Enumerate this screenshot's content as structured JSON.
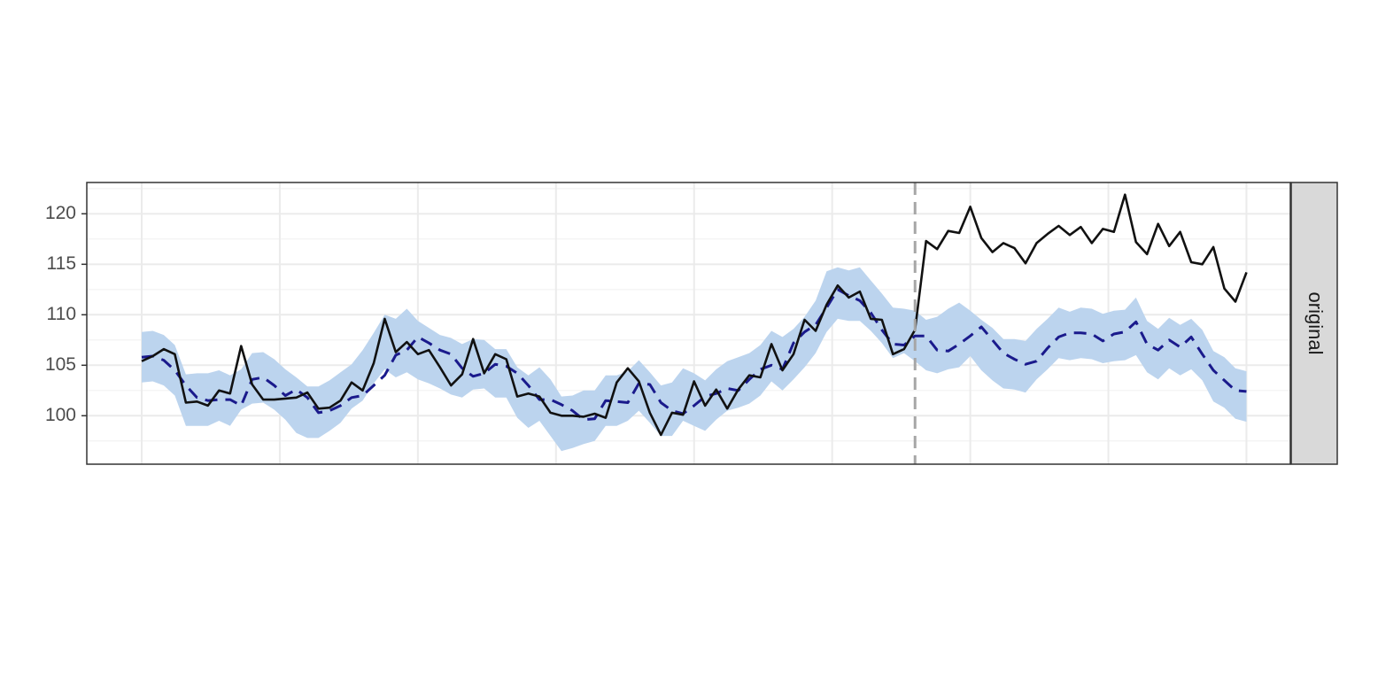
{
  "chart_data": {
    "type": "line",
    "title": "",
    "xlabel": "",
    "ylabel": "",
    "facet_label": "original",
    "x_index_range": [
      1,
      100
    ],
    "ylim": [
      95.2,
      123.1
    ],
    "y_ticks": [
      100,
      105,
      110,
      115,
      120
    ],
    "intervention_x": 71,
    "grid": true,
    "series": [
      {
        "role": "observed",
        "style": "solid",
        "color": "#111111",
        "values": [
          105.4,
          105.9,
          106.6,
          106.1,
          101.3,
          101.4,
          101.0,
          102.5,
          102.2,
          106.9,
          103.1,
          101.6,
          101.6,
          101.7,
          101.8,
          102.3,
          100.7,
          100.8,
          101.5,
          103.3,
          102.5,
          105.2,
          109.6,
          106.3,
          107.3,
          106.1,
          106.5,
          104.8,
          103.0,
          104.1,
          107.6,
          104.2,
          106.1,
          105.6,
          101.9,
          102.2,
          101.9,
          100.3,
          100.0,
          100.0,
          99.9,
          100.2,
          99.8,
          103.3,
          104.7,
          103.4,
          100.3,
          98.1,
          100.3,
          100.1,
          103.4,
          101.0,
          102.6,
          100.7,
          102.6,
          104.0,
          103.8,
          107.1,
          104.5,
          106.1,
          109.5,
          108.4,
          111.0,
          112.9,
          111.7,
          112.3,
          109.6,
          109.5,
          106.1,
          106.6,
          108.5,
          117.3,
          116.5,
          118.3,
          118.1,
          120.7,
          117.6,
          116.2,
          117.1,
          116.6,
          115.1,
          117.1,
          118.0,
          118.8,
          117.9,
          118.7,
          117.1,
          118.5,
          118.2,
          121.9,
          117.2,
          116.0,
          119.0,
          116.8,
          118.2,
          115.2,
          115.0,
          116.7,
          112.6,
          111.3,
          114.2
        ]
      },
      {
        "role": "predicted",
        "style": "dashed",
        "color": "#1a1a8c",
        "values": [
          105.8,
          105.9,
          105.5,
          104.5,
          103.0,
          101.8,
          101.5,
          101.6,
          101.6,
          101.0,
          103.6,
          103.8,
          103.0,
          102.0,
          102.6,
          101.8,
          100.3,
          100.5,
          101.0,
          101.8,
          102.0,
          103.0,
          104.0,
          106.0,
          106.5,
          107.8,
          107.2,
          106.5,
          106.1,
          104.7,
          103.9,
          104.2,
          105.1,
          104.9,
          104.2,
          103.0,
          101.6,
          101.6,
          101.1,
          100.5,
          99.6,
          99.7,
          101.5,
          101.4,
          101.3,
          103.2,
          103.1,
          101.3,
          100.5,
          100.2,
          101.0,
          101.9,
          102.2,
          102.7,
          102.5,
          103.6,
          104.6,
          105.0,
          104.6,
          107.2,
          108.3,
          109.0,
          110.7,
          112.5,
          111.9,
          111.4,
          110.2,
          108.5,
          107.1,
          107.0,
          107.9,
          107.9,
          106.5,
          106.4,
          107.1,
          107.9,
          108.8,
          107.5,
          106.2,
          105.6,
          105.1,
          105.4,
          106.7,
          107.8,
          108.2,
          108.2,
          108.1,
          107.4,
          108.1,
          108.3,
          109.3,
          107.1,
          106.5,
          107.5,
          106.8,
          107.8,
          106.1,
          104.5,
          103.5,
          102.5,
          102.4
        ]
      },
      {
        "role": "interval_lower",
        "color": "#bcd4ee",
        "values": [
          103.3,
          103.4,
          103.0,
          102.0,
          99.0,
          99.0,
          99.0,
          99.5,
          99.0,
          100.6,
          101.2,
          101.3,
          100.6,
          99.6,
          98.3,
          97.8,
          97.8,
          98.5,
          99.3,
          100.7,
          101.5,
          103.2,
          104.6,
          103.8,
          104.3,
          103.6,
          103.2,
          102.7,
          102.1,
          101.8,
          102.6,
          102.7,
          101.8,
          101.8,
          99.8,
          98.8,
          99.5,
          98.0,
          96.5,
          96.8,
          97.2,
          97.5,
          99.0,
          99.0,
          99.5,
          100.5,
          99.3,
          98.0,
          98.0,
          99.5,
          99.0,
          98.5,
          99.6,
          100.5,
          100.8,
          101.2,
          102.0,
          103.4,
          102.5,
          103.6,
          104.8,
          106.2,
          108.3,
          109.6,
          109.4,
          109.4,
          108.4,
          107.2,
          105.7,
          106.2,
          105.4,
          104.5,
          104.2,
          104.6,
          104.8,
          105.9,
          104.5,
          103.5,
          102.7,
          102.6,
          102.3,
          103.6,
          104.6,
          105.7,
          105.5,
          105.7,
          105.6,
          105.2,
          105.4,
          105.5,
          106.0,
          104.3,
          103.6,
          104.7,
          104.0,
          104.6,
          103.5,
          101.4,
          100.8,
          99.7,
          99.4
        ]
      },
      {
        "role": "interval_upper",
        "color": "#bcd4ee",
        "values": [
          108.3,
          108.4,
          108.0,
          107.0,
          104.1,
          104.2,
          104.2,
          104.5,
          104.0,
          104.6,
          106.2,
          106.3,
          105.6,
          104.6,
          103.8,
          102.9,
          102.9,
          103.5,
          104.3,
          105.1,
          106.5,
          108.2,
          110.0,
          109.6,
          110.6,
          109.4,
          108.7,
          108.0,
          107.7,
          107.1,
          107.6,
          107.5,
          106.6,
          106.6,
          104.8,
          104.0,
          104.8,
          103.6,
          101.9,
          102.0,
          102.5,
          102.5,
          104.0,
          104.0,
          104.4,
          105.5,
          104.3,
          103.0,
          103.3,
          104.7,
          104.2,
          103.5,
          104.6,
          105.4,
          105.8,
          106.2,
          107.0,
          108.4,
          107.8,
          108.6,
          109.8,
          111.4,
          114.3,
          114.7,
          114.4,
          114.7,
          113.4,
          112.1,
          110.7,
          110.6,
          110.4,
          109.5,
          109.8,
          110.6,
          111.2,
          110.4,
          109.5,
          108.7,
          107.6,
          107.6,
          107.4,
          108.6,
          109.6,
          110.7,
          110.3,
          110.7,
          110.6,
          110.1,
          110.4,
          110.5,
          111.7,
          109.4,
          108.6,
          109.7,
          109.0,
          109.6,
          108.5,
          106.4,
          105.8,
          104.7,
          104.4
        ]
      }
    ]
  }
}
